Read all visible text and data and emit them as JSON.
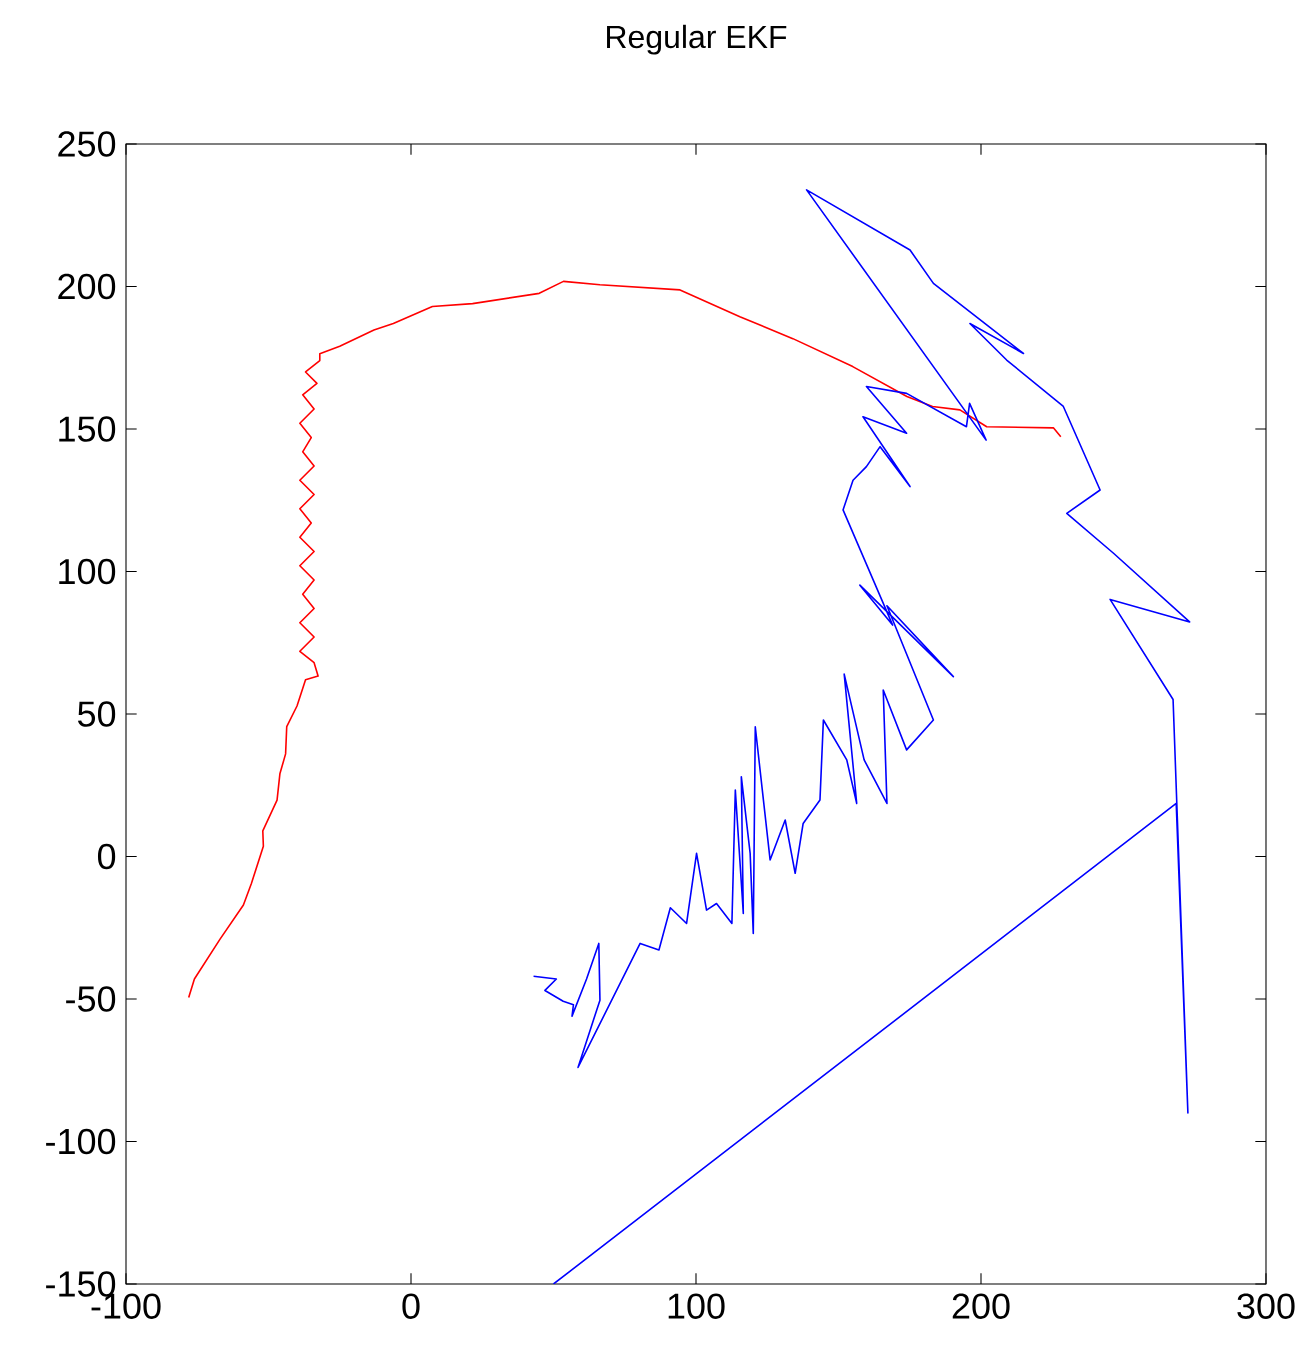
{
  "chart_data": {
    "type": "line",
    "title": "Regular EKF",
    "xlim": [
      -100,
      300
    ],
    "ylim": [
      -150,
      250
    ],
    "xticks": [
      -100,
      0,
      100,
      200,
      300
    ],
    "yticks": [
      -150,
      -100,
      -50,
      0,
      50,
      100,
      150,
      200,
      250
    ],
    "grid": false,
    "legend": false,
    "line_style": "solid",
    "marker": "none",
    "series": [
      {
        "color": "#ff0000",
        "x": [
          -78,
          -76,
          -67,
          -58.8,
          -56,
          -51.8,
          -52,
          -47,
          -46,
          -44,
          -43.6,
          -40,
          -37,
          -32.6,
          -34,
          -39,
          -34,
          -39,
          -34,
          -38,
          -34,
          -39,
          -34,
          -39,
          -35,
          -39,
          -34,
          -39,
          -34,
          -38,
          -35,
          -39,
          -34,
          -38,
          -33,
          -37,
          -32,
          -32,
          -25,
          -13,
          -6.2,
          7.5,
          21.6,
          45,
          53.5,
          66.3,
          94.4,
          115.4,
          134,
          155,
          174,
          183,
          192.6,
          202,
          225.4,
          228
        ],
        "values": [
          -49.5,
          -43,
          -29,
          -17,
          -9.5,
          3.6,
          9,
          19.8,
          29,
          36,
          45.6,
          52.8,
          62,
          63.3,
          68,
          72,
          77,
          82,
          87,
          92,
          97,
          102,
          107,
          112,
          117,
          122,
          127,
          132,
          137,
          142,
          147,
          152,
          157,
          162,
          166,
          170,
          174,
          176.4,
          179,
          184.7,
          187,
          193,
          194,
          197.6,
          201.8,
          200.6,
          198.8,
          189.4,
          181.7,
          171.9,
          161.4,
          157.9,
          156.7,
          150.8,
          150.4,
          147.3
        ]
      },
      {
        "color": "#0000ff",
        "x": [
          43,
          51,
          47,
          53.4,
          57,
          56.5,
          61.6,
          65.9,
          66.3,
          58.6,
          80.4,
          87,
          91,
          96.7,
          100.2,
          103.7,
          107.2,
          112.6,
          113.8,
          116.6,
          115.9,
          119,
          120.1,
          120.8,
          126,
          131.3,
          134.8,
          137.6,
          143.5,
          144.7,
          152.9,
          156.4,
          152,
          159,
          167,
          165.7,
          173.9,
          183.3,
          167,
          190.3,
          157.5,
          169,
          151.6,
          155.1,
          159.8,
          164.6,
          175.1,
          158.6,
          173.9,
          159.8,
          173.9,
          194.9,
          196,
          201.8,
          138.8,
          175.1,
          183.3,
          214.9,
          196.1,
          209,
          228.9,
          241.8,
          230.1,
          246.5,
          273.2,
          245.3,
          267.4,
          272.6,
          268.5,
          50
        ],
        "values": [
          -42,
          -43,
          -47,
          -50.8,
          -52,
          -56,
          -43,
          -30.5,
          -50.4,
          -74,
          -30.5,
          -32.8,
          -18,
          -23.5,
          1.1,
          -18.8,
          -16.5,
          -23.5,
          23.3,
          -20,
          28,
          1.1,
          -27,
          45.5,
          -1.2,
          12.8,
          -5.9,
          11.6,
          19.8,
          47.9,
          33.9,
          18.6,
          64,
          33.9,
          18.6,
          58.4,
          37.4,
          47.9,
          88,
          63.1,
          95.2,
          81.2,
          121.6,
          132,
          136.8,
          143.8,
          129.8,
          154.3,
          148.5,
          164.9,
          162.5,
          150.8,
          159,
          146.1,
          233.9,
          212.8,
          201.1,
          176.5,
          187,
          174.2,
          157.9,
          128.6,
          120.4,
          106.4,
          82.3,
          90.2,
          55.1,
          -90,
          18.6,
          -150
        ]
      }
    ]
  }
}
